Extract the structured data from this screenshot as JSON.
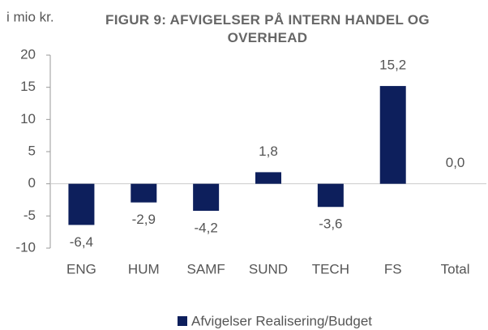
{
  "chart_data": {
    "type": "bar",
    "title": "FIGUR 9: AFVIGELSER PÅ INTERN HANDEL OG OVERHEAD",
    "y_label": "i mio kr.",
    "categories": [
      "ENG",
      "HUM",
      "SAMF",
      "SUND",
      "TECH",
      "FS",
      "Total"
    ],
    "series": [
      {
        "name": "Afvigelser Realisering/Budget",
        "color": "#0d1f5c",
        "values": [
          -6.4,
          -2.9,
          -4.2,
          1.8,
          -3.6,
          15.2,
          0.0
        ],
        "value_labels": [
          "-6,4",
          "-2,9",
          "-4,2",
          "1,8",
          "-3,6",
          "15,2",
          "0,0"
        ]
      }
    ],
    "ylim": [
      -10,
      20
    ],
    "yticks": [
      -10,
      -5,
      0,
      5,
      10,
      15,
      20
    ],
    "legend": "bottom"
  }
}
